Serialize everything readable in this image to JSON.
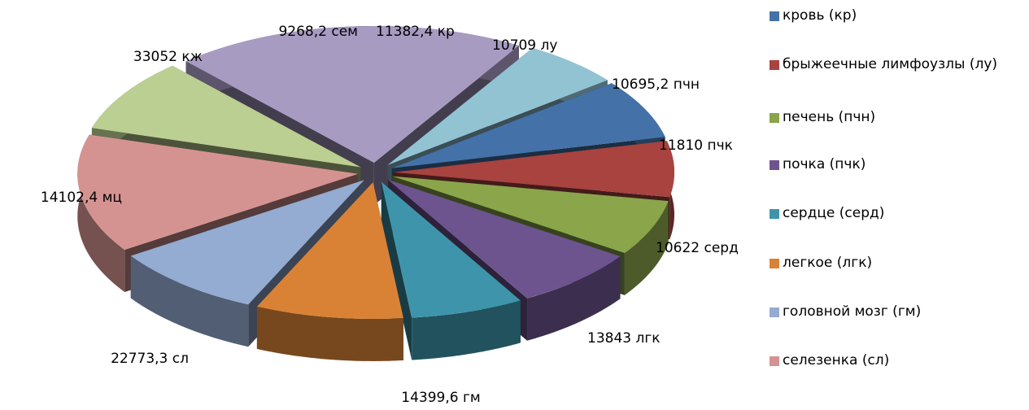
{
  "chart_data": {
    "type": "pie",
    "variant": "exploded-3d",
    "slices": [
      {
        "label": "кровь (кр)",
        "value": 11382.4,
        "data_label": "11382,4 кр",
        "color": "#4472a8"
      },
      {
        "label": "брыжеечные лимфоузлы (лу)",
        "value": 10709,
        "data_label": "10709 лу",
        "color": "#a84340"
      },
      {
        "label": "печень (пчн)",
        "value": 10695.2,
        "data_label": "10695,2 пчн",
        "color": "#8aa54a"
      },
      {
        "label": "почка (пчк)",
        "value": 11810,
        "data_label": "11810 пчк",
        "color": "#6d548e"
      },
      {
        "label": "сердце (серд)",
        "value": 10622,
        "data_label": "10622 серд",
        "color": "#3e95ab"
      },
      {
        "label": "легкое (лгк)",
        "value": 13843,
        "data_label": "13843 лгк",
        "color": "#d98236"
      },
      {
        "label": "головной мозг (гм)",
        "value": 14399.6,
        "data_label": "14399,6 гм",
        "color": "#94abd2"
      },
      {
        "label": "селезенка (сл)",
        "value": 22773.3,
        "data_label": "22773,3 сл",
        "color": "#d49391"
      },
      {
        "label": "мц",
        "value": 14102.4,
        "data_label": "14102,4 мц",
        "color": "#bccf92"
      },
      {
        "label": "кж",
        "value": 33052,
        "data_label": "33052 кж",
        "color": "#a89bc2"
      },
      {
        "label": "сем",
        "value": 9268.2,
        "data_label": "9268,2 сем",
        "color": "#92c3d3"
      }
    ],
    "legend": {
      "position": "right",
      "entries": [
        {
          "label": "кровь (кр)",
          "color": "#4472a8"
        },
        {
          "label": "брыжеечные лимфоузлы (лу)",
          "color": "#a84340"
        },
        {
          "label": "печень (пчн)",
          "color": "#8aa54a"
        },
        {
          "label": "почка (пчк)",
          "color": "#6d548e"
        },
        {
          "label": "сердце (серд)",
          "color": "#3e95ab"
        },
        {
          "label": "легкое (лгк)",
          "color": "#d98236"
        },
        {
          "label": "головной мозг (гм)",
          "color": "#94abd2"
        },
        {
          "label": "селезенка (сл)",
          "color": "#d49391"
        }
      ]
    }
  }
}
